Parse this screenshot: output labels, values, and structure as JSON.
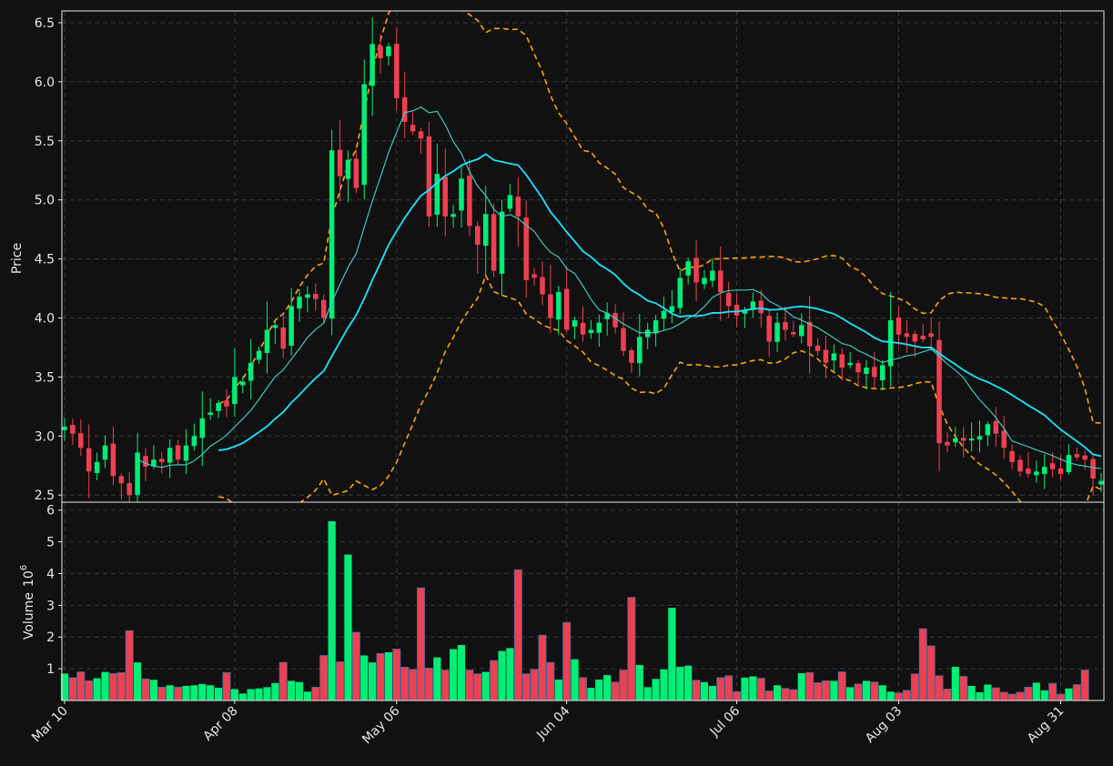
{
  "chart_data": {
    "type": "candlestick",
    "ylabel": "Price",
    "volume_label": "Volume",
    "volume_exponent": "6",
    "ylim": [
      2.44,
      6.6
    ],
    "volume_ylim": [
      0,
      6.25
    ],
    "price_ticks": [
      "2.5",
      "3.0",
      "3.5",
      "4.0",
      "4.5",
      "5.0",
      "5.5",
      "6.0",
      "6.5"
    ],
    "volume_ticks": [
      "1",
      "2",
      "3",
      "4",
      "5",
      "6"
    ],
    "x_ticks": [
      {
        "label": "Mar 10",
        "index": 0
      },
      {
        "label": "Apr 08",
        "index": 21
      },
      {
        "label": "May 06",
        "index": 41
      },
      {
        "label": "Jun 04",
        "index": 62
      },
      {
        "label": "Jul 06",
        "index": 83
      },
      {
        "label": "Aug 03",
        "index": 103
      },
      {
        "label": "Aug 31",
        "index": 123
      }
    ],
    "grid": true,
    "colors": {
      "up": "#00ee76",
      "down": "#ee4050",
      "ma_fast": "#3fd8cf",
      "ma_slow": "#17e5ff",
      "bands": "#ffa500",
      "background": "#111111"
    },
    "closes": [
      3.08,
      3.02,
      2.9,
      2.7,
      2.78,
      2.92,
      2.66,
      2.6,
      2.5,
      2.86,
      2.74,
      2.8,
      2.78,
      2.9,
      2.8,
      2.92,
      3.0,
      3.15,
      3.2,
      3.28,
      3.25,
      3.5,
      3.46,
      3.62,
      3.72,
      3.9,
      3.94,
      3.74,
      4.1,
      4.18,
      4.2,
      4.16,
      4.0,
      5.42,
      5.2,
      5.34,
      5.1,
      5.98,
      6.32,
      6.2,
      6.3,
      5.86,
      5.66,
      5.58,
      5.52,
      4.86,
      5.22,
      4.86,
      4.88,
      5.18,
      4.78,
      4.62,
      4.88,
      4.4,
      4.9,
      5.04,
      4.86,
      4.32,
      4.34,
      4.2,
      4.0,
      4.22,
      3.9,
      3.98,
      3.86,
      3.9,
      3.96,
      4.04,
      3.92,
      3.72,
      3.62,
      3.84,
      3.9,
      3.98,
      4.06,
      4.1,
      4.34,
      4.48,
      4.3,
      4.34,
      4.4,
      4.22,
      4.1,
      4.02,
      4.06,
      4.14,
      4.04,
      3.8,
      3.96,
      3.9,
      3.86,
      3.94,
      3.76,
      3.72,
      3.62,
      3.7,
      3.58,
      3.62,
      3.54,
      3.58,
      3.5,
      3.6,
      3.98,
      3.86,
      3.84,
      3.8,
      3.82,
      3.84,
      2.94,
      2.92,
      2.98,
      2.96,
      2.98,
      3.0,
      3.1,
      3.02,
      2.9,
      2.78,
      2.7,
      2.68,
      2.7,
      2.74,
      2.72,
      2.68,
      2.84,
      2.82,
      2.8,
      2.64,
      2.62
    ],
    "volume_millions": [
      0.85,
      0.72,
      0.9,
      0.62,
      0.7,
      0.9,
      0.85,
      0.88,
      2.2,
      1.2,
      0.68,
      0.65,
      0.42,
      0.48,
      0.42,
      0.46,
      0.48,
      0.52,
      0.48,
      0.4,
      0.88,
      0.36,
      0.22,
      0.36,
      0.38,
      0.42,
      0.55,
      1.2,
      0.62,
      0.58,
      0.28,
      0.42,
      1.42,
      5.65,
      1.22,
      4.6,
      2.15,
      1.42,
      1.2,
      1.48,
      1.52,
      1.62,
      1.05,
      0.98,
      3.55,
      1.02,
      1.36,
      0.96,
      1.62,
      1.75,
      0.96,
      0.84,
      0.9,
      1.26,
      1.56,
      1.65,
      4.12,
      0.84,
      0.98,
      2.06,
      1.2,
      0.66,
      2.46,
      1.3,
      0.72,
      0.4,
      0.66,
      0.8,
      0.58,
      0.96,
      3.25,
      1.12,
      0.42,
      0.68,
      0.98,
      2.92,
      1.06,
      1.1,
      0.64,
      0.58,
      0.46,
      0.72,
      0.78,
      0.28,
      0.72,
      0.76,
      0.7,
      0.3,
      0.48,
      0.38,
      0.34,
      0.86,
      0.88,
      0.56,
      0.62,
      0.62,
      0.9,
      0.42,
      0.52,
      0.62,
      0.58,
      0.48,
      0.28,
      0.24,
      0.32,
      0.84,
      2.26,
      1.72,
      0.78,
      0.36,
      1.06,
      0.76,
      0.46,
      0.26,
      0.5,
      0.4,
      0.26,
      0.2,
      0.26,
      0.42,
      0.56,
      0.32,
      0.54,
      0.2,
      0.38,
      0.5,
      0.96
    ]
  }
}
